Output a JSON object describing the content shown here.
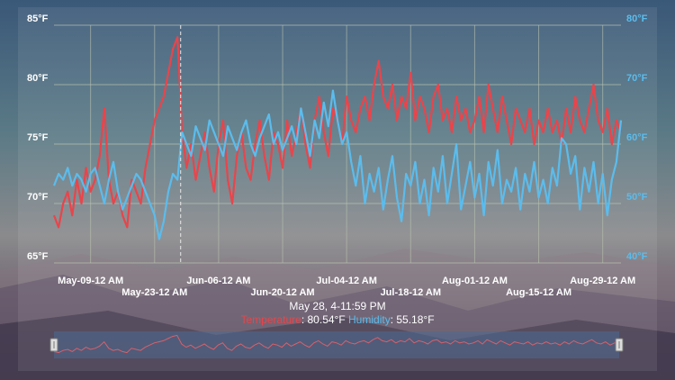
{
  "chart_data": {
    "type": "line",
    "x_start": "May 1",
    "x_end": "Sep 2",
    "x_ticks": [
      "May-09-12 AM",
      "May-23-12 AM",
      "Jun-06-12 AM",
      "Jun-20-12 AM",
      "Jul-04-12 AM",
      "Jul-18-12 AM",
      "Aug-01-12 AM",
      "Aug-15-12 AM",
      "Aug-29-12 AM"
    ],
    "y_left": {
      "ticks": [
        "85°F",
        "80°F",
        "75°F",
        "70°F",
        "65°F"
      ],
      "range": [
        65,
        85
      ]
    },
    "y_right": {
      "ticks": [
        "80°F",
        "70°F",
        "60°F",
        "50°F",
        "40°F"
      ],
      "range": [
        40,
        80
      ]
    },
    "grid": true,
    "series": [
      {
        "name": "Temperature",
        "axis": "left",
        "color": "#e8454b",
        "values": [
          69,
          68,
          70,
          71,
          69,
          72,
          70,
          73,
          71,
          72,
          74,
          78,
          72,
          70,
          71,
          69,
          68,
          72,
          71,
          70,
          73,
          75,
          77,
          78,
          79,
          81,
          83,
          84,
          76,
          73,
          75,
          72,
          74,
          76,
          73,
          71,
          75,
          77,
          72,
          70,
          74,
          76,
          73,
          72,
          75,
          77,
          74,
          72,
          76,
          75,
          73,
          77,
          74,
          76,
          78,
          75,
          73,
          77,
          79,
          76,
          74,
          78,
          77,
          75,
          79,
          77,
          76,
          78,
          79,
          77,
          80,
          82,
          79,
          78,
          80,
          77,
          79,
          78,
          81,
          77,
          79,
          78,
          76,
          79,
          80,
          77,
          78,
          76,
          79,
          77,
          78,
          76,
          77,
          79,
          76,
          80,
          78,
          76,
          79,
          77,
          75,
          78,
          77,
          76,
          78,
          75,
          77,
          76,
          78,
          76,
          77,
          75,
          78,
          76,
          79,
          77,
          76,
          78,
          80,
          77,
          76,
          78,
          75,
          77,
          76
        ]
      },
      {
        "name": "Humidity",
        "axis": "right",
        "color": "#5bbcec",
        "values": [
          53,
          55,
          54,
          56,
          53,
          55,
          54,
          52,
          55,
          56,
          53,
          50,
          54,
          57,
          52,
          49,
          51,
          53,
          55,
          54,
          52,
          50,
          48,
          44,
          47,
          52,
          55,
          54,
          62,
          60,
          58,
          63,
          61,
          59,
          64,
          62,
          60,
          58,
          63,
          61,
          59,
          62,
          64,
          60,
          58,
          61,
          63,
          65,
          60,
          62,
          59,
          61,
          63,
          60,
          66,
          62,
          58,
          64,
          61,
          67,
          63,
          69,
          64,
          60,
          62,
          57,
          53,
          58,
          50,
          55,
          52,
          56,
          49,
          54,
          58,
          51,
          47,
          55,
          53,
          57,
          50,
          54,
          48,
          56,
          52,
          58,
          50,
          55,
          60,
          49,
          53,
          57,
          51,
          55,
          48,
          57,
          53,
          59,
          50,
          54,
          52,
          56,
          49,
          55,
          52,
          57,
          51,
          54,
          50,
          56,
          53,
          61,
          60,
          55,
          58,
          49,
          56,
          52,
          57,
          50,
          55,
          48,
          54,
          57,
          64
        ]
      }
    ],
    "crosshair": {
      "label": "May 28, 4-11:59 PM",
      "temperature": "80.54°F",
      "humidity": "55.18°F"
    }
  },
  "tooltip": {
    "date": "May 28, 4-11:59 PM",
    "temp_label": "Temperature",
    "temp_value": ": 80.54°F",
    "hum_label": "Humidity",
    "hum_value": ": 55.18°F"
  }
}
